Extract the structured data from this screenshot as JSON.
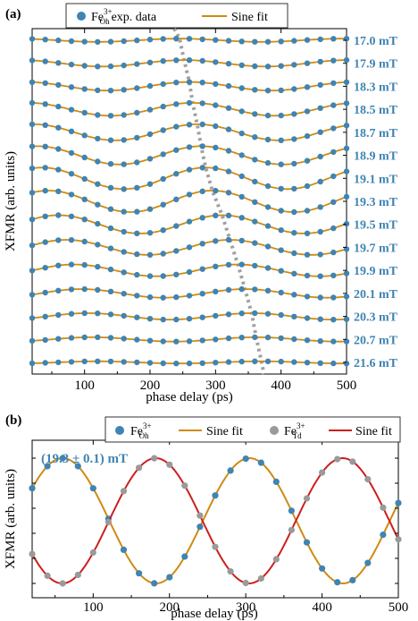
{
  "chart_data": [
    {
      "type": "line",
      "panel_label": "(a)",
      "xlabel": "phase delay (ps)",
      "ylabel": "XFMR (arb. units)",
      "xlim": [
        20,
        500
      ],
      "xticks": [
        100,
        200,
        300,
        400,
        500
      ],
      "legend": {
        "placement": "top",
        "items": [
          {
            "kind": "marker",
            "main": "Fe",
            "sup": "3+",
            "sub": "Oh",
            "suffix": "exp. data",
            "color": "#3f84b3"
          },
          {
            "kind": "line",
            "label": "Sine fit",
            "color": "#d08a12"
          }
        ]
      },
      "period_ps": 250,
      "fields": [
        "17.0 mT",
        "17.9 mT",
        "18.3 mT",
        "18.5 mT",
        "18.7 mT",
        "18.9 mT",
        "19.1 mT",
        "19.3 mT",
        "19.5 mT",
        "19.7 mT",
        "19.9 mT",
        "20.1 mT",
        "20.3 mT",
        "20.7 mT",
        "21.6 mT"
      ],
      "amplitudes": [
        0.15,
        0.3,
        0.4,
        0.6,
        0.75,
        0.85,
        1.0,
        1.0,
        0.85,
        0.7,
        0.55,
        0.4,
        0.3,
        0.2,
        0.1
      ],
      "peak_delays_ps": [
        245,
        252,
        260,
        265,
        272,
        278,
        285,
        295,
        310,
        322,
        334,
        345,
        355,
        362,
        370
      ],
      "field_label_color": "#3f84b3",
      "marker_color": "#3f84b3",
      "fit_color": "#d08a12",
      "guide_color": "#a0a0a0"
    },
    {
      "type": "line",
      "panel_label": "(b)",
      "xlabel": "phase delay (ps)",
      "ylabel": "XFMR (arb. units)",
      "xlim": [
        20,
        500
      ],
      "xticks": [
        100,
        200,
        300,
        400,
        500
      ],
      "annotation": "(19.3 ± 0.1) mT",
      "annotation_color": "#3f84b3",
      "legend": {
        "placement": "top",
        "items": [
          {
            "kind": "marker",
            "main": "Fe",
            "sup": "3+",
            "sub": "Oh",
            "color": "#3f84b3"
          },
          {
            "kind": "line",
            "label": "Sine fit",
            "color": "#d08a12"
          },
          {
            "kind": "marker",
            "main": "Fe",
            "sup": "3+",
            "sub": "Td",
            "color": "#9a9a9a"
          },
          {
            "kind": "line",
            "label": "Sine fit",
            "color": "#cc1f1f"
          }
        ]
      },
      "period_ps": 245,
      "series": [
        {
          "peak_ps": 60,
          "marker_color": "#3f84b3",
          "fit_color": "#d08a12"
        },
        {
          "peak_ps": 182,
          "marker_color": "#9a9a9a",
          "fit_color": "#cc1f1f"
        }
      ]
    }
  ]
}
